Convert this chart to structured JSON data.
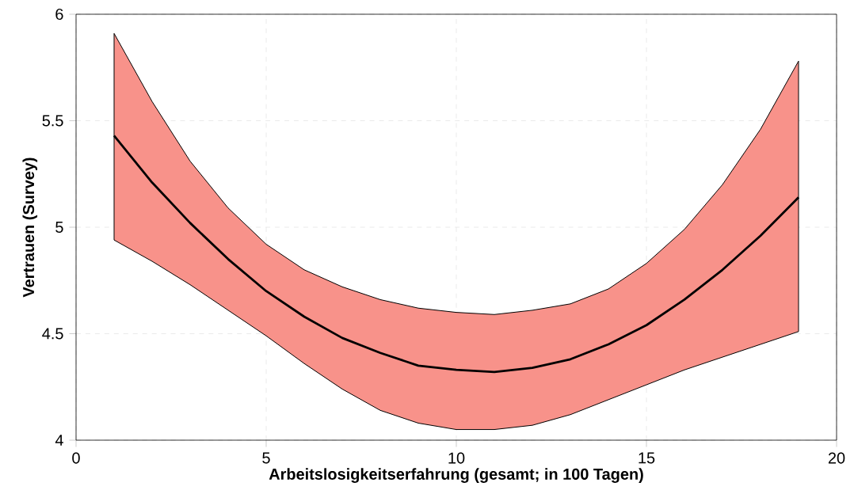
{
  "chart_data": {
    "type": "line",
    "xlabel": "Arbeitslosigkeitserfahrung (gesamt; in 100 Tagen)",
    "ylabel": "Vertrauen (Survey)",
    "x": [
      1,
      2,
      3,
      4,
      5,
      6,
      7,
      8,
      9,
      10,
      11,
      12,
      13,
      14,
      15,
      16,
      17,
      18,
      19
    ],
    "series": [
      {
        "color": "#000000",
        "values": [
          5.43,
          5.21,
          5.02,
          4.85,
          4.7,
          4.58,
          4.48,
          4.41,
          4.35,
          4.33,
          4.32,
          4.34,
          4.38,
          4.45,
          4.54,
          4.66,
          4.8,
          4.96,
          5.14
        ],
        "upper": [
          5.91,
          5.59,
          5.31,
          5.09,
          4.92,
          4.8,
          4.72,
          4.66,
          4.62,
          4.6,
          4.59,
          4.61,
          4.64,
          4.71,
          4.83,
          4.99,
          5.2,
          5.46,
          5.78
        ],
        "lower": [
          4.94,
          4.84,
          4.73,
          4.61,
          4.49,
          4.36,
          4.24,
          4.14,
          4.08,
          4.05,
          4.05,
          4.07,
          4.12,
          4.19,
          4.26,
          4.33,
          4.39,
          4.45,
          4.51
        ]
      }
    ],
    "xlim": [
      0,
      20
    ],
    "ylim": [
      4,
      6
    ],
    "xticks": [
      0,
      5,
      10,
      15,
      20
    ],
    "yticks": [
      4,
      4.5,
      5,
      5.5,
      6
    ],
    "grid": true,
    "marker": "none",
    "line_style": "solid"
  }
}
